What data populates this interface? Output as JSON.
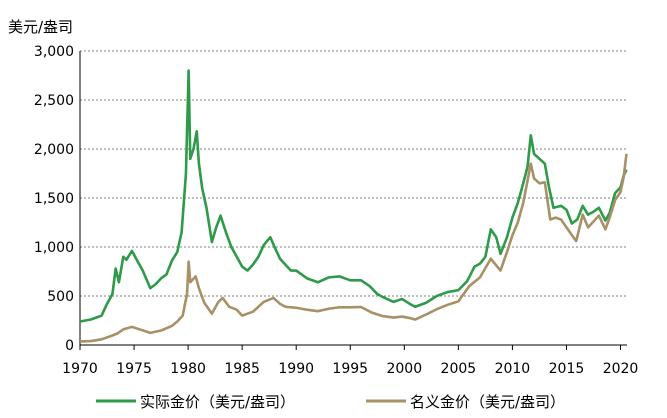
{
  "chart_data": {
    "type": "line",
    "y_unit_label": "美元/盎司",
    "xlim": [
      1970,
      2020.6
    ],
    "ylim": [
      0,
      3000
    ],
    "x_ticks": [
      1970,
      1975,
      1980,
      1985,
      1990,
      1995,
      2000,
      2005,
      2010,
      2015,
      2020
    ],
    "y_ticks": [
      0,
      500,
      1000,
      1500,
      2000,
      2500,
      3000
    ],
    "y_tick_labels": [
      "0",
      "500",
      "1,000",
      "1,500",
      "2,000",
      "2,500",
      "3,000"
    ],
    "grid": "horizontal dashed",
    "legend_placement": "bottom",
    "series": [
      {
        "name": "实际金价（美元/盎司）",
        "color": "#2e9a4a",
        "points": [
          [
            1970.0,
            240
          ],
          [
            1971.0,
            260
          ],
          [
            1972.0,
            300
          ],
          [
            1972.5,
            420
          ],
          [
            1973.0,
            520
          ],
          [
            1973.3,
            780
          ],
          [
            1973.6,
            640
          ],
          [
            1974.0,
            900
          ],
          [
            1974.3,
            870
          ],
          [
            1974.8,
            960
          ],
          [
            1975.3,
            860
          ],
          [
            1975.8,
            760
          ],
          [
            1976.5,
            580
          ],
          [
            1977.0,
            620
          ],
          [
            1977.5,
            680
          ],
          [
            1978.0,
            720
          ],
          [
            1978.5,
            860
          ],
          [
            1979.0,
            950
          ],
          [
            1979.4,
            1150
          ],
          [
            1979.8,
            1750
          ],
          [
            1980.05,
            2800
          ],
          [
            1980.2,
            1900
          ],
          [
            1980.5,
            2000
          ],
          [
            1980.8,
            2180
          ],
          [
            1981.0,
            1850
          ],
          [
            1981.3,
            1600
          ],
          [
            1981.7,
            1400
          ],
          [
            1982.2,
            1050
          ],
          [
            1982.6,
            1200
          ],
          [
            1983.0,
            1320
          ],
          [
            1983.5,
            1150
          ],
          [
            1984.0,
            1000
          ],
          [
            1984.5,
            900
          ],
          [
            1985.0,
            800
          ],
          [
            1985.5,
            760
          ],
          [
            1986.0,
            820
          ],
          [
            1986.5,
            900
          ],
          [
            1987.0,
            1020
          ],
          [
            1987.6,
            1100
          ],
          [
            1988.0,
            1000
          ],
          [
            1988.5,
            880
          ],
          [
            1989.0,
            820
          ],
          [
            1989.5,
            760
          ],
          [
            1990.0,
            760
          ],
          [
            1990.5,
            720
          ],
          [
            1991.0,
            680
          ],
          [
            1992.0,
            640
          ],
          [
            1993.0,
            690
          ],
          [
            1994.0,
            700
          ],
          [
            1995.0,
            660
          ],
          [
            1996.0,
            660
          ],
          [
            1996.8,
            600
          ],
          [
            1997.5,
            520
          ],
          [
            1998.0,
            490
          ],
          [
            1999.0,
            440
          ],
          [
            1999.8,
            470
          ],
          [
            2000.5,
            420
          ],
          [
            2001.0,
            390
          ],
          [
            2002.0,
            430
          ],
          [
            2003.0,
            500
          ],
          [
            2004.0,
            540
          ],
          [
            2005.0,
            560
          ],
          [
            2005.8,
            650
          ],
          [
            2006.5,
            800
          ],
          [
            2007.0,
            830
          ],
          [
            2007.5,
            900
          ],
          [
            2008.0,
            1180
          ],
          [
            2008.5,
            1100
          ],
          [
            2008.9,
            930
          ],
          [
            2009.5,
            1100
          ],
          [
            2010.0,
            1300
          ],
          [
            2010.5,
            1450
          ],
          [
            2011.0,
            1650
          ],
          [
            2011.4,
            1820
          ],
          [
            2011.7,
            2140
          ],
          [
            2012.0,
            1950
          ],
          [
            2012.5,
            1900
          ],
          [
            2013.0,
            1850
          ],
          [
            2013.4,
            1600
          ],
          [
            2013.8,
            1400
          ],
          [
            2014.5,
            1420
          ],
          [
            2015.0,
            1380
          ],
          [
            2015.5,
            1240
          ],
          [
            2016.0,
            1280
          ],
          [
            2016.5,
            1420
          ],
          [
            2017.0,
            1330
          ],
          [
            2017.5,
            1360
          ],
          [
            2018.0,
            1400
          ],
          [
            2018.6,
            1270
          ],
          [
            2019.0,
            1350
          ],
          [
            2019.5,
            1550
          ],
          [
            2020.0,
            1610
          ],
          [
            2020.3,
            1730
          ],
          [
            2020.55,
            1790
          ]
        ]
      },
      {
        "name": "名义金价（美元/盎司）",
        "color": "#a89067",
        "points": [
          [
            1970.0,
            36
          ],
          [
            1971.0,
            40
          ],
          [
            1972.0,
            58
          ],
          [
            1973.0,
            97
          ],
          [
            1973.5,
            120
          ],
          [
            1974.0,
            159
          ],
          [
            1974.8,
            185
          ],
          [
            1975.5,
            160
          ],
          [
            1976.5,
            124
          ],
          [
            1977.5,
            148
          ],
          [
            1978.5,
            195
          ],
          [
            1979.0,
            240
          ],
          [
            1979.5,
            300
          ],
          [
            1979.9,
            520
          ],
          [
            1980.05,
            850
          ],
          [
            1980.2,
            640
          ],
          [
            1980.7,
            700
          ],
          [
            1981.0,
            580
          ],
          [
            1981.5,
            430
          ],
          [
            1982.2,
            320
          ],
          [
            1982.8,
            440
          ],
          [
            1983.2,
            480
          ],
          [
            1983.8,
            390
          ],
          [
            1984.5,
            360
          ],
          [
            1985.0,
            300
          ],
          [
            1986.0,
            340
          ],
          [
            1987.0,
            440
          ],
          [
            1987.9,
            480
          ],
          [
            1988.5,
            420
          ],
          [
            1989.0,
            390
          ],
          [
            1990.0,
            380
          ],
          [
            1991.0,
            360
          ],
          [
            1992.0,
            345
          ],
          [
            1993.0,
            370
          ],
          [
            1994.0,
            385
          ],
          [
            1995.0,
            385
          ],
          [
            1996.0,
            388
          ],
          [
            1997.0,
            330
          ],
          [
            1998.0,
            295
          ],
          [
            1999.0,
            280
          ],
          [
            1999.8,
            290
          ],
          [
            2000.5,
            275
          ],
          [
            2001.0,
            260
          ],
          [
            2002.0,
            310
          ],
          [
            2003.0,
            365
          ],
          [
            2004.0,
            410
          ],
          [
            2005.0,
            445
          ],
          [
            2006.0,
            600
          ],
          [
            2007.0,
            690
          ],
          [
            2008.0,
            880
          ],
          [
            2008.9,
            760
          ],
          [
            2009.5,
            950
          ],
          [
            2010.0,
            1120
          ],
          [
            2010.5,
            1250
          ],
          [
            2011.0,
            1450
          ],
          [
            2011.7,
            1850
          ],
          [
            2012.0,
            1700
          ],
          [
            2012.5,
            1650
          ],
          [
            2013.0,
            1660
          ],
          [
            2013.5,
            1280
          ],
          [
            2014.0,
            1300
          ],
          [
            2014.5,
            1280
          ],
          [
            2015.0,
            1200
          ],
          [
            2015.9,
            1060
          ],
          [
            2016.5,
            1330
          ],
          [
            2017.0,
            1200
          ],
          [
            2017.5,
            1260
          ],
          [
            2018.0,
            1320
          ],
          [
            2018.6,
            1180
          ],
          [
            2019.0,
            1300
          ],
          [
            2019.5,
            1480
          ],
          [
            2020.0,
            1560
          ],
          [
            2020.3,
            1720
          ],
          [
            2020.55,
            1950
          ]
        ]
      }
    ]
  }
}
